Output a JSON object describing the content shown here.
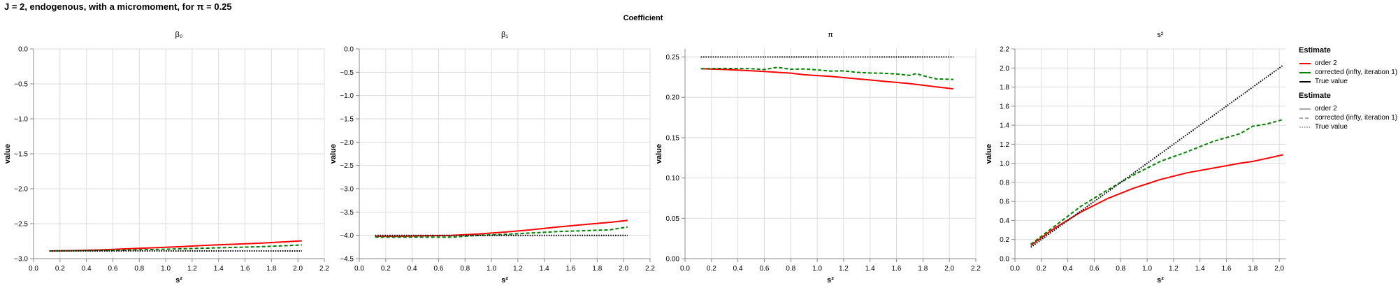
{
  "figure": {
    "title": "J = 2, endogenous, with a micromoment,  for π = 0.25",
    "facet_header": "Coefficient"
  },
  "legend": {
    "color_title": "Estimate",
    "color_items": [
      {
        "label": "order 2",
        "color": "#ff0000"
      },
      {
        "label": "corrected (infty, iteration 1)",
        "color": "#008000"
      },
      {
        "label": "True value",
        "color": "#000000"
      }
    ],
    "dash_title": "Estimate",
    "dash_items": [
      {
        "label": "order 2",
        "dash": "solid"
      },
      {
        "label": "corrected (infty, iteration 1)",
        "dash": "dashed"
      },
      {
        "label": "True value",
        "dash": "dotted"
      }
    ]
  },
  "chart_data": [
    {
      "type": "line",
      "title": "β₀",
      "xlabel": "s²",
      "ylabel": "value",
      "xlim": [
        0,
        2.2
      ],
      "ylim": [
        -3.0,
        0.0
      ],
      "xticks": [
        0.0,
        0.2,
        0.4,
        0.6,
        0.8,
        1.0,
        1.2,
        1.4,
        1.6,
        1.8,
        2.0,
        2.2
      ],
      "yticks": [
        -3.0,
        -2.5,
        -2.0,
        -1.5,
        -1.0,
        -0.5,
        0.0
      ],
      "ytick_decimals": 1,
      "grid": true,
      "x": [
        0.12,
        0.3,
        0.5,
        0.7,
        0.9,
        1.1,
        1.3,
        1.5,
        1.7,
        1.9,
        2.03
      ],
      "series": [
        {
          "name": "order 2",
          "color": "#ff0000",
          "dash": "solid",
          "values": [
            -2.89,
            -2.885,
            -2.875,
            -2.86,
            -2.845,
            -2.83,
            -2.81,
            -2.795,
            -2.78,
            -2.76,
            -2.745
          ]
        },
        {
          "name": "corrected (infty, iteration 1)",
          "color": "#008000",
          "dash": "dashed",
          "values": [
            -2.89,
            -2.887,
            -2.883,
            -2.878,
            -2.87,
            -2.86,
            -2.85,
            -2.84,
            -2.83,
            -2.815,
            -2.805
          ]
        },
        {
          "name": "True value",
          "color": "#000000",
          "dash": "dotted",
          "values": [
            -2.89,
            -2.89,
            -2.89,
            -2.89,
            -2.89,
            -2.89,
            -2.89,
            -2.89,
            -2.89,
            -2.89,
            -2.89
          ]
        }
      ]
    },
    {
      "type": "line",
      "title": "β₁",
      "xlabel": "s²",
      "ylabel": "value",
      "xlim": [
        0,
        2.2
      ],
      "ylim": [
        -4.5,
        0.0
      ],
      "xticks": [
        0.0,
        0.2,
        0.4,
        0.6,
        0.8,
        1.0,
        1.2,
        1.4,
        1.6,
        1.8,
        2.0,
        2.2
      ],
      "yticks": [
        -4.5,
        -4.0,
        -3.5,
        -3.0,
        -2.5,
        -2.0,
        -1.5,
        -1.0,
        -0.5,
        0.0
      ],
      "ytick_decimals": 1,
      "grid": true,
      "x": [
        0.12,
        0.3,
        0.5,
        0.7,
        0.9,
        1.1,
        1.3,
        1.5,
        1.7,
        1.9,
        2.03
      ],
      "series": [
        {
          "name": "order 2",
          "color": "#ff0000",
          "dash": "solid",
          "values": [
            -4.02,
            -4.02,
            -4.01,
            -4.0,
            -3.97,
            -3.93,
            -3.88,
            -3.82,
            -3.77,
            -3.72,
            -3.68
          ]
        },
        {
          "name": "corrected (infty, iteration 1)",
          "color": "#008000",
          "dash": "dashed",
          "values": [
            -4.04,
            -4.04,
            -4.04,
            -4.04,
            -4.0,
            -3.98,
            -3.95,
            -3.92,
            -3.9,
            -3.88,
            -3.82
          ]
        },
        {
          "name": "True value",
          "color": "#000000",
          "dash": "dotted",
          "values": [
            -4.0,
            -4.0,
            -4.0,
            -4.0,
            -4.0,
            -4.0,
            -4.0,
            -4.0,
            -4.0,
            -4.0,
            -4.0
          ]
        }
      ]
    },
    {
      "type": "line",
      "title": "π",
      "xlabel": "s²",
      "ylabel": "value",
      "xlim": [
        0,
        2.2
      ],
      "ylim": [
        0.0,
        0.26
      ],
      "xticks": [
        0.0,
        0.2,
        0.4,
        0.6,
        0.8,
        1.0,
        1.2,
        1.4,
        1.6,
        1.8,
        2.0,
        2.2
      ],
      "yticks": [
        0.0,
        0.05,
        0.1,
        0.15,
        0.2,
        0.25
      ],
      "ytick_decimals": 2,
      "grid": true,
      "x": [
        0.12,
        0.3,
        0.5,
        0.6,
        0.7,
        0.8,
        0.9,
        1.0,
        1.1,
        1.2,
        1.3,
        1.4,
        1.5,
        1.6,
        1.7,
        1.75,
        1.8,
        1.9,
        2.03
      ],
      "series": [
        {
          "name": "order 2",
          "color": "#ff0000",
          "dash": "solid",
          "values": [
            0.2355,
            0.2345,
            0.233,
            0.232,
            0.231,
            0.23,
            0.228,
            0.227,
            0.226,
            0.2245,
            0.223,
            0.2215,
            0.22,
            0.2185,
            0.217,
            0.216,
            0.215,
            0.213,
            0.2105
          ]
        },
        {
          "name": "corrected (infty, iteration 1)",
          "color": "#008000",
          "dash": "dashed",
          "values": [
            0.2355,
            0.2358,
            0.2355,
            0.2345,
            0.2372,
            0.2348,
            0.2352,
            0.234,
            0.2325,
            0.2328,
            0.231,
            0.2302,
            0.2298,
            0.229,
            0.2272,
            0.2295,
            0.2268,
            0.2228,
            0.2222
          ]
        },
        {
          "name": "True value",
          "color": "#000000",
          "dash": "dotted",
          "values": [
            0.25,
            0.25,
            0.25,
            0.25,
            0.25,
            0.25,
            0.25,
            0.25,
            0.25,
            0.25,
            0.25,
            0.25,
            0.25,
            0.25,
            0.25,
            0.25,
            0.25,
            0.25,
            0.25
          ]
        }
      ]
    },
    {
      "type": "line",
      "title": "s²",
      "xlabel": "s²",
      "ylabel": "value",
      "xlim": [
        0,
        2.2
      ],
      "ylim": [
        0.0,
        2.2
      ],
      "xticks": [
        0.0,
        0.2,
        0.4,
        0.6,
        0.8,
        1.0,
        1.2,
        1.4,
        1.6,
        1.8,
        2.0,
        2.2
      ],
      "yticks": [
        0.0,
        0.2,
        0.4,
        0.6,
        0.8,
        1.0,
        1.2,
        1.4,
        1.6,
        1.8,
        2.0,
        2.2
      ],
      "ytick_decimals": 1,
      "grid": true,
      "x": [
        0.12,
        0.3,
        0.5,
        0.7,
        0.9,
        1.1,
        1.3,
        1.5,
        1.7,
        1.8,
        1.9,
        2.03
      ],
      "series": [
        {
          "name": "order 2",
          "color": "#ff0000",
          "dash": "solid",
          "values": [
            0.14,
            0.32,
            0.49,
            0.63,
            0.74,
            0.83,
            0.9,
            0.95,
            1.0,
            1.02,
            1.05,
            1.09
          ]
        },
        {
          "name": "corrected (infty, iteration 1)",
          "color": "#008000",
          "dash": "dashed",
          "values": [
            0.15,
            0.34,
            0.55,
            0.72,
            0.88,
            1.02,
            1.12,
            1.23,
            1.31,
            1.39,
            1.41,
            1.46
          ]
        },
        {
          "name": "True value",
          "color": "#000000",
          "dash": "dotted",
          "values": [
            0.12,
            0.3,
            0.5,
            0.7,
            0.9,
            1.1,
            1.3,
            1.5,
            1.7,
            1.8,
            1.9,
            2.03
          ]
        }
      ]
    }
  ]
}
